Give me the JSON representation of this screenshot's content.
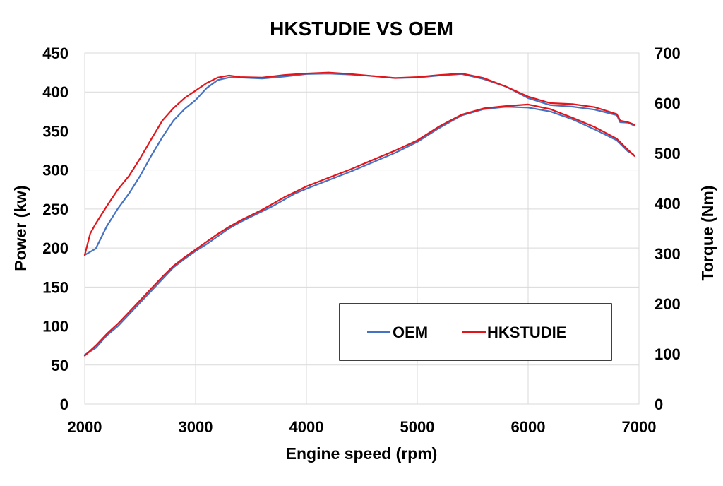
{
  "chart_data": {
    "type": "line",
    "title": "HKSTUDIE VS OEM",
    "xlabel": "Engine speed (rpm)",
    "ylabel_left": "Power (kw)",
    "ylabel_right": "Torque (Nm)",
    "xlim": [
      2000,
      7000
    ],
    "ylim_left": [
      0,
      450
    ],
    "ylim_right": [
      0,
      700
    ],
    "x_ticks": [
      2000,
      3000,
      4000,
      5000,
      6000,
      7000
    ],
    "y_ticks_left": [
      0,
      50,
      100,
      150,
      200,
      250,
      300,
      350,
      400,
      450
    ],
    "y_ticks_right": [
      0,
      100,
      200,
      300,
      400,
      500,
      600,
      700
    ],
    "grid": true,
    "legend_position": "lower-right",
    "legend": [
      {
        "name": "OEM",
        "color": "#4472C4"
      },
      {
        "name": "HKSTUDIE",
        "color": "#E3151A"
      }
    ],
    "series": [
      {
        "name": "OEM",
        "quantity": "power",
        "axis": "left",
        "color": "#4472C4",
        "x": [
          2000,
          2100,
          2200,
          2300,
          2400,
          2500,
          2600,
          2700,
          2800,
          2900,
          3000,
          3100,
          3200,
          3300,
          3400,
          3500,
          3600,
          3700,
          3800,
          3900,
          4000,
          4200,
          4400,
          4600,
          4800,
          5000,
          5200,
          5400,
          5600,
          5800,
          6000,
          6200,
          6400,
          6600,
          6800,
          6900,
          6950
        ],
        "y": [
          63,
          72,
          88,
          100,
          115,
          130,
          145,
          160,
          175,
          186,
          196,
          205,
          215,
          225,
          233,
          240,
          247,
          254,
          262,
          270,
          276,
          287,
          298,
          310,
          322,
          336,
          354,
          370,
          378,
          381,
          380,
          375,
          365,
          352,
          338,
          324,
          320
        ]
      },
      {
        "name": "HKSTUDIE",
        "quantity": "power",
        "axis": "left",
        "color": "#E3151A",
        "x": [
          2000,
          2100,
          2200,
          2300,
          2400,
          2500,
          2600,
          2700,
          2800,
          2900,
          3000,
          3100,
          3200,
          3300,
          3400,
          3500,
          3600,
          3700,
          3800,
          3900,
          4000,
          4200,
          4400,
          4600,
          4800,
          5000,
          5200,
          5400,
          5600,
          5800,
          6000,
          6200,
          6400,
          6600,
          6800,
          6900,
          6960
        ],
        "y": [
          62,
          75,
          90,
          103,
          118,
          133,
          148,
          163,
          177,
          188,
          198,
          208,
          218,
          227,
          235,
          242,
          249,
          257,
          265,
          272,
          279,
          290,
          301,
          313,
          325,
          338,
          356,
          371,
          379,
          382,
          384,
          378,
          367,
          355,
          340,
          326,
          318
        ]
      },
      {
        "name": "OEM",
        "quantity": "torque",
        "axis": "right",
        "color": "#4472C4",
        "x": [
          2000,
          2100,
          2200,
          2300,
          2400,
          2500,
          2600,
          2700,
          2800,
          2900,
          3000,
          3100,
          3200,
          3300,
          3400,
          3600,
          3800,
          4000,
          4200,
          4400,
          4600,
          4800,
          5000,
          5200,
          5400,
          5600,
          5800,
          6000,
          6200,
          6400,
          6600,
          6800,
          6830,
          6900,
          6960
        ],
        "y": [
          297,
          310,
          355,
          390,
          420,
          455,
          495,
          532,
          565,
          588,
          606,
          630,
          646,
          651,
          651,
          649,
          653,
          658,
          659,
          657,
          654,
          650,
          651,
          655,
          658,
          648,
          633,
          610,
          596,
          593,
          587,
          576,
          562,
          561,
          555
        ]
      },
      {
        "name": "HKSTUDIE",
        "quantity": "torque",
        "axis": "right",
        "color": "#E3151A",
        "x": [
          2000,
          2050,
          2100,
          2200,
          2300,
          2400,
          2500,
          2600,
          2700,
          2800,
          2900,
          3000,
          3100,
          3200,
          3300,
          3400,
          3600,
          3800,
          4000,
          4200,
          4400,
          4600,
          4800,
          5000,
          5200,
          5400,
          5600,
          5800,
          6000,
          6200,
          6400,
          6600,
          6800,
          6830,
          6900,
          6960
        ],
        "y": [
          297,
          340,
          360,
          395,
          428,
          455,
          490,
          528,
          565,
          590,
          610,
          625,
          640,
          651,
          655,
          652,
          651,
          656,
          659,
          661,
          658,
          654,
          650,
          652,
          656,
          659,
          650,
          633,
          613,
          600,
          598,
          592,
          578,
          565,
          562,
          557
        ]
      }
    ]
  }
}
